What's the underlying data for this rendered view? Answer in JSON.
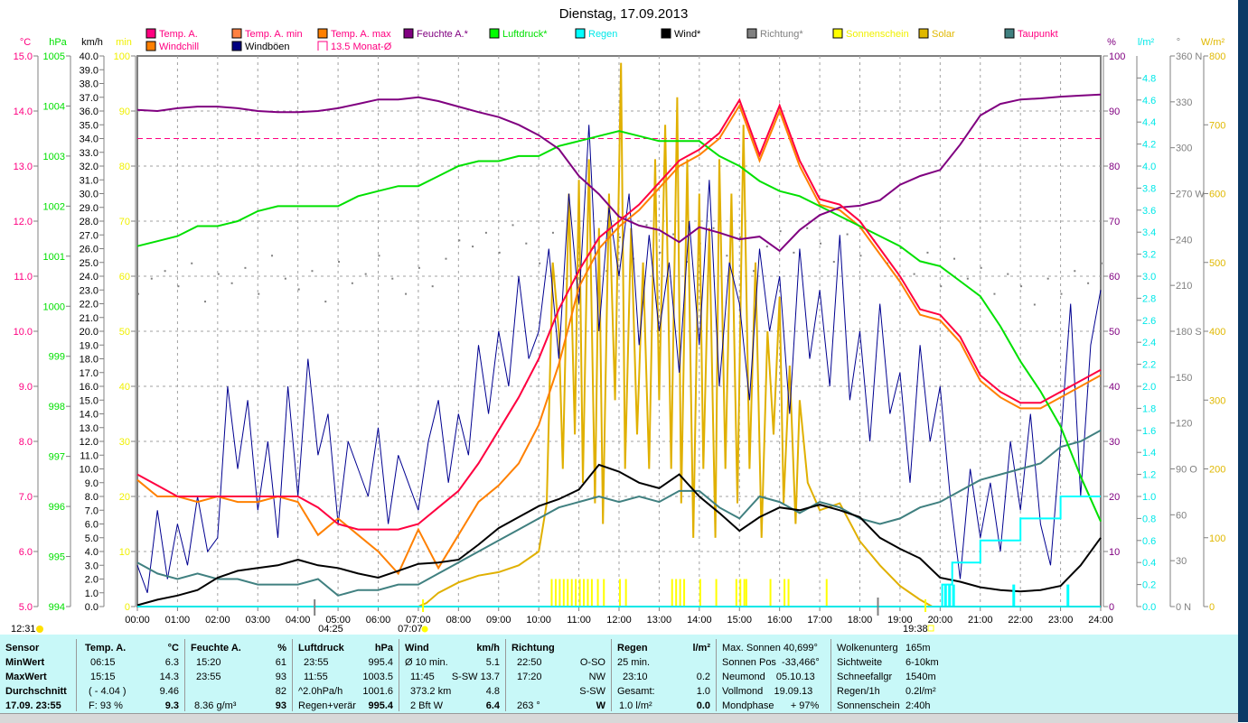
{
  "title": "Dienstag, 17.09.2013",
  "legend": [
    {
      "label": "Temp. A.",
      "color": "#ff0080",
      "text_color": "#ff0080"
    },
    {
      "label": "Temp. A. min",
      "color": "#ff8040",
      "text_color": "#ff0080"
    },
    {
      "label": "Temp. A. max",
      "color": "#ff8000",
      "text_color": "#ff0080"
    },
    {
      "label": "Feuchte A.*",
      "color": "#800080",
      "text_color": "#800080"
    },
    {
      "label": "Luftdruck*",
      "color": "#00ff00",
      "text_color": "#00e000"
    },
    {
      "label": "Regen",
      "color": "#00ffff",
      "text_color": "#00e8e8"
    },
    {
      "label": "Wind*",
      "color": "#000000",
      "text_color": "#000000"
    },
    {
      "label": "Richtung*",
      "color": "#808080",
      "text_color": "#808080"
    },
    {
      "label": "Sonnenschein",
      "color": "#ffff00",
      "text_color": "#f0f000"
    },
    {
      "label": "Solar",
      "color": "#e0b800",
      "text_color": "#e0b800"
    },
    {
      "label": "Taupunkt",
      "color": "#408080",
      "text_color": "#ff0080"
    },
    {
      "label": "Windchill",
      "color": "#ff8000",
      "text_color": "#ff0080"
    },
    {
      "label": "Windböen",
      "color": "#000080",
      "text_color": "#000000"
    },
    {
      "label": "13.5 Monat-Ø",
      "color": "#ff0080",
      "text_color": "#ff0080",
      "outline": true
    }
  ],
  "chart_data": {
    "type": "line",
    "title": "Dienstag, 17.09.2013",
    "x_unit": "hour",
    "xlim": [
      0,
      24
    ],
    "x_tick_labels": [
      "00:00",
      "01:00",
      "02:00",
      "03:00",
      "04:00",
      "05:00",
      "06:00",
      "07:00",
      "08:00",
      "09:00",
      "10:00",
      "11:00",
      "12:00",
      "13:00",
      "14:00",
      "15:00",
      "16:00",
      "17:00",
      "18:00",
      "19:00",
      "20:00",
      "21:00",
      "22:00",
      "23:00",
      "24:00"
    ],
    "grid": true,
    "axes": [
      {
        "id": "temp",
        "unit": "°C",
        "min": 5,
        "max": 15,
        "step": 1,
        "decimals": 1,
        "color": "#ff0080"
      },
      {
        "id": "hpa",
        "unit": "hPa",
        "min": 994,
        "max": 1005,
        "step": 1,
        "decimals": 0,
        "color": "#00e000"
      },
      {
        "id": "kmh",
        "unit": "km/h",
        "min": 0,
        "max": 40,
        "step": 1,
        "decimals": 1,
        "color": "#000000"
      },
      {
        "id": "min",
        "unit": "min",
        "min": 0,
        "max": 100,
        "step": 10,
        "decimals": 0,
        "color": "#f0f000"
      },
      {
        "id": "pct",
        "unit": "%",
        "min": 0,
        "max": 100,
        "step": 10,
        "decimals": 0,
        "color": "#800080"
      },
      {
        "id": "rain",
        "unit": "l/m²",
        "min": 0,
        "max": 5,
        "step": 0.2,
        "decimals": 1,
        "label_max": 4.8,
        "color": "#00e8e8"
      },
      {
        "id": "dir",
        "unit": "°",
        "min": 0,
        "max": 360,
        "step": 30,
        "decimals": 0,
        "color": "#808080",
        "compass": {
          "0": "N",
          "90": "O",
          "180": "S",
          "270": "W",
          "360": "N"
        }
      },
      {
        "id": "wm2",
        "unit": "W/m²",
        "min": 0,
        "max": 800,
        "step": 100,
        "decimals": 0,
        "color": "#e0b800"
      }
    ],
    "month_avg_temp": 13.5,
    "series_step_hours": 0.5,
    "series": [
      {
        "name": "Temp. A.",
        "axis": "temp",
        "color": "#ff0040",
        "values": [
          7.4,
          7.2,
          7.0,
          7.0,
          7.0,
          7.0,
          7.0,
          7.0,
          7.0,
          6.8,
          6.5,
          6.4,
          6.4,
          6.4,
          6.5,
          6.8,
          7.1,
          7.6,
          8.2,
          8.8,
          9.5,
          10.4,
          11.1,
          11.7,
          12.0,
          12.3,
          12.7,
          13.1,
          13.3,
          13.6,
          14.2,
          13.2,
          14.1,
          13.1,
          12.4,
          12.3,
          12.0,
          11.5,
          11.0,
          10.4,
          10.3,
          9.9,
          9.2,
          8.9,
          8.7,
          8.7,
          8.9,
          9.1,
          9.3
        ]
      },
      {
        "name": "Windchill",
        "axis": "temp",
        "color": "#ff8000",
        "values": [
          7.3,
          7.0,
          7.0,
          6.9,
          7.0,
          6.9,
          6.9,
          7.0,
          6.9,
          6.3,
          6.6,
          6.3,
          6.0,
          5.6,
          6.4,
          5.7,
          6.3,
          6.9,
          7.2,
          7.6,
          8.3,
          9.4,
          10.8,
          11.5,
          11.9,
          12.2,
          12.6,
          13.0,
          13.2,
          13.5,
          14.1,
          13.1,
          14.0,
          13.0,
          12.3,
          12.2,
          11.9,
          11.4,
          10.9,
          10.3,
          10.2,
          9.8,
          9.1,
          8.8,
          8.6,
          8.6,
          8.8,
          9.0,
          9.2
        ]
      },
      {
        "name": "Feuchte A.*",
        "axis": "pct",
        "color": "#800080",
        "values": [
          90.2,
          90.0,
          90.5,
          90.8,
          90.8,
          90.5,
          90.0,
          89.8,
          89.8,
          90.0,
          90.5,
          91.3,
          92.1,
          92.1,
          92.5,
          91.8,
          90.8,
          89.8,
          88.9,
          87.5,
          85.6,
          83.1,
          78.2,
          74.9,
          70.8,
          69.2,
          68.4,
          66.2,
          68.9,
          67.9,
          66.7,
          67.2,
          64.6,
          68.4,
          71.1,
          72.5,
          72.8,
          73.8,
          76.6,
          78.2,
          79.3,
          83.9,
          89.2,
          91.3,
          92.1,
          92.3,
          92.6,
          92.8,
          93.0
        ]
      },
      {
        "name": "Luftdruck*",
        "axis": "hpa",
        "color": "#00e000",
        "values": [
          1001.2,
          1001.3,
          1001.4,
          1001.6,
          1001.6,
          1001.7,
          1001.9,
          1002.0,
          1002.0,
          1002.0,
          1002.0,
          1002.2,
          1002.3,
          1002.4,
          1002.4,
          1002.6,
          1002.8,
          1002.9,
          1002.9,
          1003.0,
          1003.0,
          1003.2,
          1003.3,
          1003.4,
          1003.5,
          1003.4,
          1003.3,
          1003.3,
          1003.3,
          1003.0,
          1002.8,
          1002.5,
          1002.3,
          1002.2,
          1002.0,
          1001.8,
          1001.6,
          1001.4,
          1001.2,
          1000.9,
          1000.8,
          1000.5,
          1000.2,
          999.6,
          998.9,
          998.3,
          997.6,
          996.6,
          995.7
        ]
      },
      {
        "name": "Taupunkt",
        "axis": "temp",
        "color": "#408080",
        "values": [
          5.8,
          5.6,
          5.5,
          5.6,
          5.5,
          5.5,
          5.4,
          5.4,
          5.4,
          5.5,
          5.2,
          5.3,
          5.3,
          5.4,
          5.4,
          5.6,
          5.8,
          6.0,
          6.2,
          6.4,
          6.6,
          6.8,
          6.9,
          7.0,
          6.9,
          7.0,
          6.9,
          7.1,
          7.1,
          6.8,
          6.6,
          7.0,
          6.9,
          6.7,
          6.9,
          6.8,
          6.6,
          6.5,
          6.6,
          6.8,
          6.9,
          7.1,
          7.3,
          7.4,
          7.5,
          7.6,
          7.9,
          8.0,
          8.2
        ]
      },
      {
        "name": "Wind*",
        "axis": "kmh",
        "color": "#000000",
        "values": [
          0.1,
          0.5,
          0.8,
          1.2,
          2.1,
          2.6,
          2.8,
          3.0,
          3.4,
          3.0,
          2.8,
          2.4,
          2.1,
          2.6,
          3.1,
          3.2,
          3.4,
          4.5,
          5.7,
          6.5,
          7.3,
          7.8,
          8.5,
          10.3,
          9.8,
          9.0,
          8.6,
          9.6,
          8.0,
          6.8,
          5.5,
          6.5,
          7.2,
          7.0,
          7.4,
          7.0,
          6.5,
          5.0,
          4.2,
          3.5,
          2.1,
          1.8,
          1.4,
          1.2,
          1.1,
          1.2,
          1.5,
          3.0,
          5.0
        ]
      }
    ],
    "gusts": {
      "name": "Windböen",
      "axis": "kmh",
      "color": "#000090",
      "step_hours": 0.25,
      "values": [
        3,
        1,
        7,
        2,
        6,
        3,
        8,
        4,
        5,
        16,
        10,
        15,
        7,
        12,
        5,
        16,
        8,
        18,
        11,
        14,
        6,
        12,
        10,
        8,
        13,
        6,
        11,
        9,
        7,
        12,
        15,
        9,
        14,
        11,
        19,
        14,
        20,
        16,
        24,
        18,
        20,
        26,
        18,
        30,
        22,
        35,
        20,
        29,
        24,
        30,
        19,
        27,
        20,
        25,
        17,
        28,
        19,
        31,
        16,
        25,
        22,
        15,
        26,
        20,
        24,
        14,
        26,
        18,
        23,
        16,
        27,
        15,
        20,
        12,
        22,
        14,
        17,
        9,
        19,
        12,
        16,
        8,
        2,
        10,
        5,
        9,
        4,
        12,
        7,
        14,
        6,
        3,
        12,
        22,
        8,
        19,
        23
      ]
    },
    "direction": {
      "name": "Richtung*",
      "axis": "dir",
      "color": "#808080",
      "step_hours": 0.3333,
      "values": [
        205,
        215,
        220,
        210,
        225,
        200,
        218,
        212,
        222,
        205,
        230,
        215,
        208,
        220,
        200,
        226,
        212,
        218,
        230,
        215,
        205,
        222,
        210,
        228,
        240,
        236,
        245,
        232,
        250,
        238,
        225,
        245,
        215,
        248,
        235,
        220,
        242,
        228,
        250,
        232,
        244,
        226,
        238,
        248,
        230,
        242,
        220,
        236,
        246,
        232,
        248,
        238,
        226,
        244,
        230,
        240,
        225,
        235,
        218,
        232,
        210,
        228,
        215,
        222,
        205,
        218,
        210,
        198,
        215,
        205,
        220,
        212,
        225
      ]
    },
    "solar": {
      "name": "Solar",
      "axis": "wm2",
      "color": "#e0b000",
      "points": [
        [
          0,
          0
        ],
        [
          7,
          0
        ],
        [
          7.2,
          5
        ],
        [
          7.5,
          20
        ],
        [
          8,
          35
        ],
        [
          8.5,
          45
        ],
        [
          9,
          50
        ],
        [
          9.5,
          60
        ],
        [
          10,
          80
        ],
        [
          10.2,
          150
        ],
        [
          10.35,
          500
        ],
        [
          10.5,
          400
        ],
        [
          10.6,
          200
        ],
        [
          10.75,
          600
        ],
        [
          10.9,
          250
        ],
        [
          11,
          620
        ],
        [
          11.1,
          180
        ],
        [
          11.25,
          650
        ],
        [
          11.4,
          150
        ],
        [
          11.5,
          550
        ],
        [
          11.6,
          120
        ],
        [
          11.75,
          600
        ],
        [
          11.9,
          300
        ],
        [
          12.05,
          790
        ],
        [
          12.15,
          200
        ],
        [
          12.3,
          550
        ],
        [
          12.45,
          250
        ],
        [
          12.6,
          500
        ],
        [
          12.75,
          200
        ],
        [
          12.9,
          650
        ],
        [
          13,
          300
        ],
        [
          13.15,
          700
        ],
        [
          13.3,
          200
        ],
        [
          13.45,
          740
        ],
        [
          13.55,
          150
        ],
        [
          13.7,
          650
        ],
        [
          13.85,
          100
        ],
        [
          14,
          600
        ],
        [
          14.1,
          200
        ],
        [
          14.25,
          550
        ],
        [
          14.4,
          100
        ],
        [
          14.5,
          650
        ],
        [
          14.65,
          200
        ],
        [
          14.8,
          600
        ],
        [
          14.95,
          150
        ],
        [
          15.1,
          700
        ],
        [
          15.25,
          200
        ],
        [
          15.4,
          500
        ],
        [
          15.55,
          100
        ],
        [
          15.7,
          400
        ],
        [
          15.85,
          250
        ],
        [
          16,
          450
        ],
        [
          16.1,
          150
        ],
        [
          16.25,
          350
        ],
        [
          16.4,
          120
        ],
        [
          16.5,
          300
        ],
        [
          16.7,
          180
        ],
        [
          17,
          140
        ],
        [
          17.5,
          150
        ],
        [
          18,
          95
        ],
        [
          18.5,
          60
        ],
        [
          19,
          30
        ],
        [
          19.5,
          10
        ],
        [
          19.8,
          0
        ],
        [
          24,
          0
        ]
      ]
    },
    "rain_total": {
      "name": "Regen",
      "axis": "rain",
      "color": "#00ffff",
      "points": [
        [
          0,
          0
        ],
        [
          20.05,
          0
        ],
        [
          20.05,
          0.2
        ],
        [
          20.3,
          0.2
        ],
        [
          20.3,
          0.4
        ],
        [
          21,
          0.4
        ],
        [
          21,
          0.6
        ],
        [
          22,
          0.6
        ],
        [
          22,
          0.8
        ],
        [
          23,
          0.8
        ],
        [
          23,
          1.0
        ],
        [
          24,
          1.0
        ]
      ]
    },
    "rain_bars": {
      "axis": "rain",
      "value": 0.2,
      "times": [
        20.1,
        20.2,
        20.3,
        21.8,
        23.15
      ]
    },
    "sunshine_bars": {
      "axis": "min",
      "value": 5,
      "times": [
        10.3,
        10.4,
        10.5,
        10.6,
        10.7,
        10.8,
        10.9,
        11.0,
        11.1,
        11.2,
        11.3,
        11.45,
        11.6,
        12.0,
        12.15,
        13.3,
        13.4,
        13.5,
        13.6,
        14.0,
        14.4,
        14.9,
        15.0,
        15.1,
        15.15,
        15.75,
        16.1,
        16.2,
        17.15
      ]
    }
  },
  "astro_markers": {
    "noon": "12:31",
    "moonset": "04:25",
    "sunrise": "07:07",
    "sunset": "19:38"
  },
  "table": {
    "sensor": {
      "header": "Sensor",
      "rows": [
        "MinWert",
        "MaxWert",
        "Durchschnitt",
        "17.09. 23:55"
      ]
    },
    "temp": {
      "header": "Temp. A.",
      "unit": "°C",
      "min_time": "06:15",
      "min": "6.3",
      "max_time": "15:15",
      "max": "14.3",
      "avg_note": "( - 4.04 )",
      "avg": "9.46",
      "cur_note": "F: 93 %",
      "cur": "9.3"
    },
    "hum": {
      "header": "Feuchte A.",
      "unit": "%",
      "min_time": "15:20",
      "min": "61",
      "max_time": "23:55",
      "max": "93",
      "avg": "82",
      "cur_note": "8.36 g/m³",
      "cur": "93"
    },
    "press": {
      "header": "Luftdruck",
      "unit": "hPa",
      "min_time": "23:55",
      "min": "995.4",
      "max_time": "11:55",
      "max": "1003.5",
      "trend": "^2.0hPa/h",
      "avg": "1001.6",
      "forecast": "Regen+verär",
      "cur": "995.4"
    },
    "wind": {
      "header": "Wind",
      "unit": "km/h",
      "avg10": "Ø 10 min.",
      "avg10_val": "5.1",
      "max_time": "11:45",
      "max": "S-SW 13.7",
      "dist": "373.2 km",
      "avg": "4.8",
      "bft": "2 Bft W",
      "cur": "6.4"
    },
    "dir": {
      "header": "Richtung",
      "r1_time": "22:50",
      "r1": "O-SO",
      "r2_time": "17:20",
      "r2": "NW",
      "r3": "S-SW",
      "cur_deg": "263 °",
      "cur": "W"
    },
    "rain": {
      "header": "Regen",
      "unit": "l/m²",
      "r1": "25 min.",
      "r2_time": "23:10",
      "r2": "0.2",
      "r3": "Gesamt:",
      "r3_val": "1.0",
      "r4": "1.0 l/m²",
      "cur": "0.0"
    },
    "astro": [
      "Max. Sonnen 40,699°",
      "Sonnen Pos  -33,466°",
      "Neumond    05.10.13",
      "Vollmond    19.09.13",
      "Mondphase      + 97%"
    ],
    "misc": [
      [
        "Wolkenunterg",
        "165m"
      ],
      [
        "Sichtweite",
        "6-10km"
      ],
      [
        "Schneefallgr",
        "1540m"
      ],
      [
        "Regen/1h",
        "0.2l/m²"
      ],
      [
        "Sonnenschein",
        "2:40h"
      ]
    ]
  }
}
